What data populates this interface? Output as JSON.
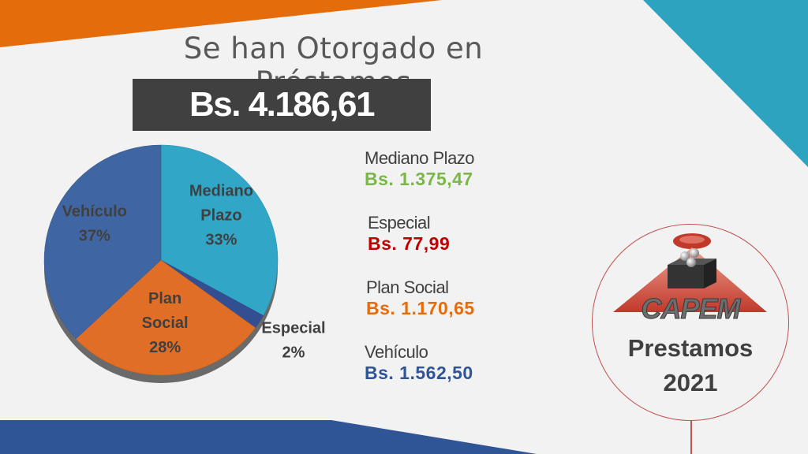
{
  "title": "Se han Otorgado en Préstamos",
  "total": "Bs.  4.186,61",
  "colors": {
    "mediano": "#31a6c6",
    "especial": "#334f92",
    "social": "#e06e27",
    "vehiculo": "#3f66a3",
    "green": "#7ab648",
    "red": "#c00000",
    "orange_accent": "#e46c0a",
    "teal_accent": "#2ea3c0",
    "navy_accent": "#2f5597"
  },
  "chart_data": {
    "type": "pie",
    "slices": [
      {
        "key": "mediano",
        "label_lines": [
          "Mediano",
          "Plazo"
        ],
        "percent": "33%",
        "value": 33
      },
      {
        "key": "especial",
        "label_lines": [
          "Especial"
        ],
        "percent": "2%",
        "value": 2
      },
      {
        "key": "social",
        "label_lines": [
          "Plan",
          "Social"
        ],
        "percent": "28%",
        "value": 28
      },
      {
        "key": "vehiculo",
        "label_lines": [
          "Vehículo"
        ],
        "percent": "37%",
        "value": 37
      }
    ]
  },
  "legend": [
    {
      "name": "Mediano Plazo",
      "amount": "Bs. 1.375,47",
      "color": "#7ab648"
    },
    {
      "name": "Especial",
      "amount": "Bs. 77,99",
      "color": "#c00000"
    },
    {
      "name": "Plan Social",
      "amount": "Bs. 1.170,65",
      "color": "#e46c0a"
    },
    {
      "name": "Vehículo",
      "amount": "Bs. 1.562,50",
      "color": "#2f5597"
    }
  ],
  "badge": {
    "logo_text": "CAPEM",
    "line1": "Prestamos",
    "line2": "2021"
  }
}
